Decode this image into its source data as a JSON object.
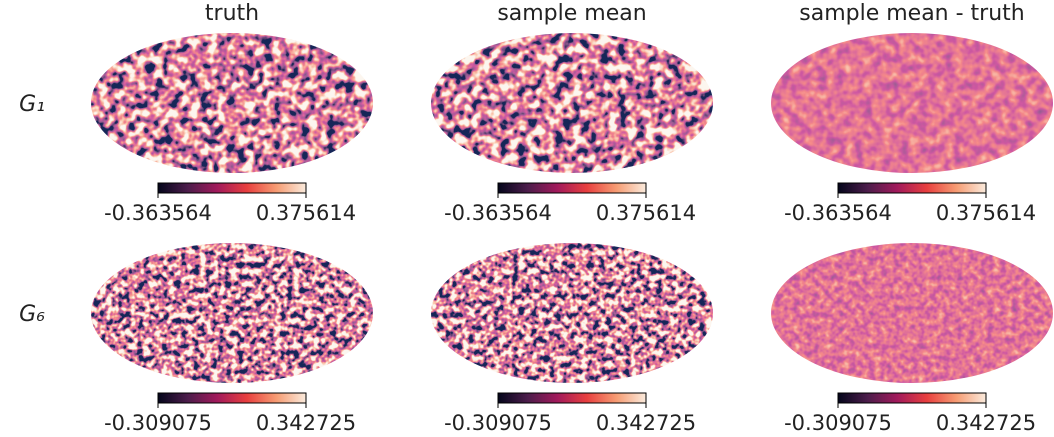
{
  "columns": [
    "truth",
    "sample mean",
    "sample mean - truth"
  ],
  "rows": [
    {
      "label": "G₁",
      "colorbar": {
        "min": "-0.363564",
        "max": "0.375614"
      }
    },
    {
      "label": "G₆",
      "colorbar": {
        "min": "-0.309075",
        "max": "0.342725"
      }
    }
  ]
}
